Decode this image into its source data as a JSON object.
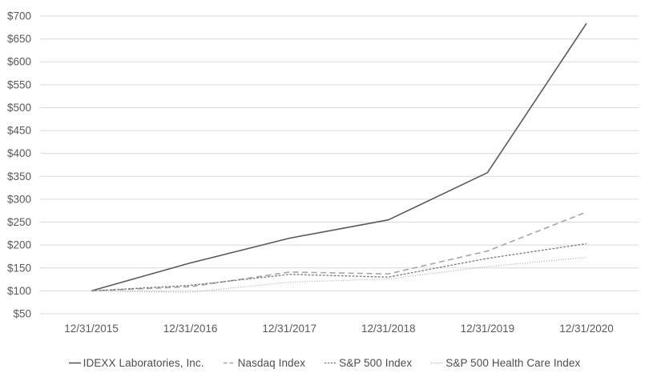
{
  "page": {
    "background_color": "#ffffff",
    "title": ""
  },
  "chart_data": {
    "type": "line",
    "title": "",
    "xlabel": "",
    "ylabel": "",
    "x": [
      "12/31/2015",
      "12/31/2016",
      "12/31/2017",
      "12/31/2018",
      "12/31/2019",
      "12/31/2020"
    ],
    "series": [
      {
        "name": "IDEXX Laboratories, Inc.",
        "values": [
          100,
          161,
          215,
          255,
          358,
          684
        ],
        "color": "#595959",
        "style": "solid"
      },
      {
        "name": "Nasdaq Index",
        "values": [
          100,
          109,
          141,
          137,
          187,
          272
        ],
        "color": "#a6a6a6",
        "style": "dashed"
      },
      {
        "name": "S&P 500 Index",
        "values": [
          100,
          112,
          136,
          130,
          171,
          203
        ],
        "color": "#7a7a7a",
        "style": "short-dash"
      },
      {
        "name": "S&P 500 Health Care Index",
        "values": [
          100,
          97,
          119,
          126,
          153,
          173
        ],
        "color": "#a8a8a8",
        "style": "dotted"
      }
    ],
    "ylim": [
      50,
      700
    ],
    "yticks": [
      {
        "label": "$700",
        "value": 700
      },
      {
        "label": "$650",
        "value": 650
      },
      {
        "label": "$600",
        "value": 600
      },
      {
        "label": "$550",
        "value": 550
      },
      {
        "label": "$500",
        "value": 500
      },
      {
        "label": "$450",
        "value": 450
      },
      {
        "label": "$400",
        "value": 400
      },
      {
        "label": "$350",
        "value": 350
      },
      {
        "label": "$300",
        "value": 300
      },
      {
        "label": "$250",
        "value": 250
      },
      {
        "label": "$200",
        "value": 200
      },
      {
        "label": "$150",
        "value": 150
      },
      {
        "label": "$100",
        "value": 100
      },
      {
        "label": "$50",
        "value": 50
      }
    ],
    "grid": "horizontal",
    "legend_position": "bottom",
    "gridline_color": "#d9d9d9",
    "text_color": "#595959",
    "legend_text_color": "#4d4d4d"
  }
}
